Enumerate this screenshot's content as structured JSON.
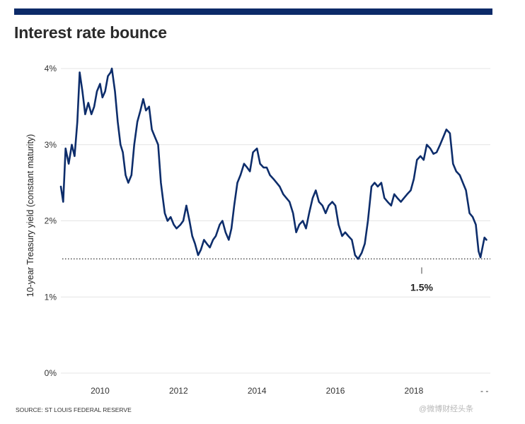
{
  "title": "Interest rate bounce",
  "source": "SOURCE: St Louis Federal Reserve",
  "watermark": "@微博财经头条",
  "colors": {
    "line": "#0d2d6b",
    "bar": "#0c2a68",
    "grid": "#e4e4e4",
    "reference": "#333333"
  },
  "chart_data": {
    "type": "line",
    "title": "Interest rate bounce",
    "xlabel": "",
    "ylabel": "10-year Treasury yield (constant maturity)",
    "ylim": [
      0,
      4
    ],
    "xlim": [
      2009.0,
      2019.95
    ],
    "yticks": [
      {
        "value": 0,
        "label": "0%"
      },
      {
        "value": 1,
        "label": "1%"
      },
      {
        "value": 2,
        "label": "2%"
      },
      {
        "value": 3,
        "label": "3%"
      },
      {
        "value": 4,
        "label": "4%"
      }
    ],
    "xticks": [
      {
        "value": 2010,
        "label": "2010"
      },
      {
        "value": 2012,
        "label": "2012"
      },
      {
        "value": 2014,
        "label": "2014"
      },
      {
        "value": 2016,
        "label": "2016"
      },
      {
        "value": 2018,
        "label": "2018"
      },
      {
        "value": 2019.8,
        "label": "- -"
      }
    ],
    "grid": true,
    "reference_line": {
      "value": 1.5,
      "label": "1.5%",
      "label_x": 2018.2,
      "style": "dotted"
    },
    "series": [
      {
        "name": "10-year Treasury yield",
        "x": [
          2009.0,
          2009.06,
          2009.12,
          2009.2,
          2009.28,
          2009.35,
          2009.42,
          2009.48,
          2009.55,
          2009.62,
          2009.7,
          2009.78,
          2009.85,
          2009.92,
          2010.0,
          2010.06,
          2010.13,
          2010.2,
          2010.27,
          2010.3,
          2010.38,
          2010.45,
          2010.52,
          2010.58,
          2010.65,
          2010.72,
          2010.8,
          2010.87,
          2010.95,
          2011.03,
          2011.1,
          2011.17,
          2011.25,
          2011.32,
          2011.4,
          2011.48,
          2011.55,
          2011.6,
          2011.65,
          2011.72,
          2011.8,
          2011.88,
          2011.95,
          2012.05,
          2012.12,
          2012.2,
          2012.28,
          2012.35,
          2012.42,
          2012.5,
          2012.57,
          2012.65,
          2012.72,
          2012.8,
          2012.88,
          2012.95,
          2013.05,
          2013.12,
          2013.2,
          2013.28,
          2013.35,
          2013.42,
          2013.5,
          2013.58,
          2013.67,
          2013.75,
          2013.82,
          2013.9,
          2014.0,
          2014.08,
          2014.17,
          2014.25,
          2014.33,
          2014.42,
          2014.5,
          2014.58,
          2014.67,
          2014.75,
          2014.83,
          2014.92,
          2015.0,
          2015.08,
          2015.17,
          2015.25,
          2015.33,
          2015.42,
          2015.5,
          2015.58,
          2015.67,
          2015.75,
          2015.83,
          2015.92,
          2016.0,
          2016.08,
          2016.17,
          2016.25,
          2016.33,
          2016.42,
          2016.5,
          2016.58,
          2016.67,
          2016.75,
          2016.83,
          2016.92,
          2017.0,
          2017.08,
          2017.17,
          2017.25,
          2017.33,
          2017.42,
          2017.5,
          2017.58,
          2017.67,
          2017.75,
          2017.83,
          2017.92,
          2018.0,
          2018.08,
          2018.17,
          2018.25,
          2018.33,
          2018.42,
          2018.5,
          2018.58,
          2018.67,
          2018.75,
          2018.83,
          2018.92,
          2019.0,
          2019.08,
          2019.17,
          2019.25,
          2019.33,
          2019.42,
          2019.5,
          2019.58,
          2019.62,
          2019.65,
          2019.7,
          2019.75,
          2019.8,
          2019.85
        ],
        "y": [
          2.45,
          2.25,
          2.95,
          2.75,
          3.0,
          2.85,
          3.3,
          3.95,
          3.7,
          3.4,
          3.55,
          3.4,
          3.5,
          3.7,
          3.8,
          3.62,
          3.7,
          3.9,
          3.95,
          4.0,
          3.7,
          3.3,
          3.0,
          2.9,
          2.6,
          2.5,
          2.6,
          3.0,
          3.3,
          3.45,
          3.6,
          3.45,
          3.5,
          3.2,
          3.1,
          3.0,
          2.5,
          2.3,
          2.1,
          2.0,
          2.05,
          1.95,
          1.9,
          1.95,
          2.0,
          2.2,
          2.0,
          1.8,
          1.7,
          1.55,
          1.62,
          1.75,
          1.7,
          1.65,
          1.75,
          1.8,
          1.95,
          2.0,
          1.85,
          1.75,
          1.9,
          2.2,
          2.5,
          2.6,
          2.75,
          2.7,
          2.65,
          2.9,
          2.95,
          2.75,
          2.7,
          2.7,
          2.6,
          2.55,
          2.5,
          2.45,
          2.35,
          2.3,
          2.25,
          2.1,
          1.85,
          1.95,
          2.0,
          1.9,
          2.1,
          2.3,
          2.4,
          2.25,
          2.2,
          2.1,
          2.2,
          2.25,
          2.2,
          1.95,
          1.8,
          1.85,
          1.8,
          1.75,
          1.55,
          1.5,
          1.58,
          1.7,
          2.0,
          2.45,
          2.5,
          2.45,
          2.5,
          2.3,
          2.25,
          2.2,
          2.35,
          2.3,
          2.25,
          2.3,
          2.35,
          2.4,
          2.55,
          2.8,
          2.85,
          2.8,
          3.0,
          2.95,
          2.88,
          2.9,
          3.0,
          3.1,
          3.2,
          3.15,
          2.75,
          2.65,
          2.6,
          2.5,
          2.4,
          2.1,
          2.05,
          1.95,
          1.75,
          1.6,
          1.52,
          1.65,
          1.78,
          1.75
        ]
      }
    ]
  }
}
